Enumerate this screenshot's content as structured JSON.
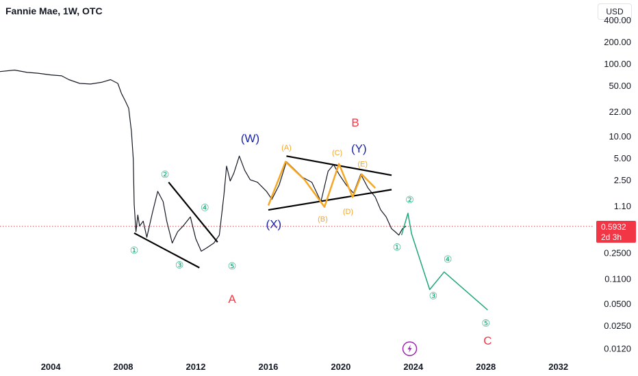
{
  "header": {
    "title": "Fannie Mae, 1W, OTC",
    "currency_button": "USD"
  },
  "price_tag": {
    "price": "0.5932",
    "countdown": "2d 3h"
  },
  "colors": {
    "price": "#131722",
    "triangle": "#000000",
    "orange": "#f5a623",
    "navy": "#1a23a8",
    "red": "#f23645",
    "teal": "#1fa67a",
    "cursor": "#9c27b0"
  },
  "lightning_icon": "lightning-icon",
  "chart_data": {
    "type": "line",
    "title": "Fannie Mae, 1W, OTC",
    "xlabel": "",
    "ylabel": "",
    "x_ticks": [
      "2004",
      "2008",
      "2012",
      "2016",
      "2020",
      "2024",
      "2028",
      "2032"
    ],
    "xlim": [
      2001.2,
      2033.9
    ],
    "y_scale": "log",
    "y_ticks": [
      "400.00",
      "200.00",
      "100.00",
      "50.00",
      "22.00",
      "10.00",
      "5.00",
      "2.50",
      "1.10",
      "0.2500",
      "0.1100",
      "0.0500",
      "0.0250",
      "0.0120"
    ],
    "ylim": [
      0.0095,
      650
    ],
    "current_price": 0.5932,
    "price_series": [
      [
        2001.2,
        80
      ],
      [
        2002.0,
        84
      ],
      [
        2002.7,
        78
      ],
      [
        2003.3,
        76
      ],
      [
        2004.0,
        72
      ],
      [
        2004.6,
        70
      ],
      [
        2005.0,
        62
      ],
      [
        2005.6,
        55
      ],
      [
        2006.2,
        54
      ],
      [
        2006.8,
        57
      ],
      [
        2007.3,
        62
      ],
      [
        2007.7,
        55
      ],
      [
        2007.9,
        40
      ],
      [
        2008.1,
        32
      ],
      [
        2008.3,
        25
      ],
      [
        2008.45,
        12
      ],
      [
        2008.55,
        5
      ],
      [
        2008.6,
        1.2
      ],
      [
        2008.7,
        0.5
      ],
      [
        2008.8,
        0.85
      ],
      [
        2008.9,
        0.6
      ],
      [
        2009.1,
        0.7
      ],
      [
        2009.3,
        0.42
      ],
      [
        2009.6,
        0.9
      ],
      [
        2009.9,
        1.8
      ],
      [
        2010.2,
        1.3
      ],
      [
        2010.4,
        0.7
      ],
      [
        2010.7,
        0.35
      ],
      [
        2011.0,
        0.5
      ],
      [
        2011.3,
        0.6
      ],
      [
        2011.7,
        0.8
      ],
      [
        2012.0,
        0.4
      ],
      [
        2012.3,
        0.27
      ],
      [
        2012.6,
        0.3
      ],
      [
        2013.0,
        0.35
      ],
      [
        2013.3,
        0.45
      ],
      [
        2013.55,
        1.6
      ],
      [
        2013.7,
        4.0
      ],
      [
        2013.9,
        2.5
      ],
      [
        2014.1,
        3.2
      ],
      [
        2014.4,
        5.5
      ],
      [
        2014.7,
        3.5
      ],
      [
        2015.0,
        2.6
      ],
      [
        2015.4,
        2.4
      ],
      [
        2015.9,
        1.8
      ],
      [
        2016.2,
        1.4
      ],
      [
        2016.6,
        2.2
      ],
      [
        2017.0,
        4.6
      ],
      [
        2017.5,
        3.5
      ],
      [
        2017.9,
        2.8
      ],
      [
        2018.4,
        2.4
      ],
      [
        2018.9,
        1.3
      ],
      [
        2019.3,
        3.4
      ],
      [
        2019.6,
        4.2
      ],
      [
        2019.9,
        3.1
      ],
      [
        2020.3,
        2.2
      ],
      [
        2020.7,
        1.7
      ],
      [
        2021.1,
        3.1
      ],
      [
        2021.5,
        2.0
      ],
      [
        2021.9,
        1.5
      ],
      [
        2022.2,
        1.0
      ],
      [
        2022.5,
        0.8
      ],
      [
        2022.8,
        0.55
      ],
      [
        2023.0,
        0.5
      ],
      [
        2023.2,
        0.45
      ],
      [
        2023.4,
        0.55
      ],
      [
        2023.6,
        0.6
      ]
    ],
    "triangle_lines": [
      [
        [
          2008.6,
          0.48
        ],
        [
          2012.2,
          0.16
        ]
      ],
      [
        [
          2010.5,
          2.4
        ],
        [
          2013.2,
          0.36
        ]
      ],
      [
        [
          2017.0,
          5.5
        ],
        [
          2022.8,
          3.0
        ]
      ],
      [
        [
          2016.0,
          1.0
        ],
        [
          2022.8,
          1.9
        ]
      ]
    ],
    "orange_zigzag": [
      [
        2016.0,
        1.15
      ],
      [
        2016.95,
        4.6
      ],
      [
        2018.0,
        2.6
      ],
      [
        2019.1,
        1.1
      ],
      [
        2019.9,
        4.3
      ],
      [
        2020.65,
        1.5
      ],
      [
        2021.15,
        3.1
      ],
      [
        2021.9,
        2.0
      ]
    ],
    "projection_path": [
      [
        2023.35,
        0.45
      ],
      [
        2023.7,
        0.9
      ],
      [
        2023.9,
        0.47
      ],
      [
        2024.9,
        0.08
      ],
      [
        2025.7,
        0.14
      ],
      [
        2028.1,
        0.042
      ]
    ],
    "wave_labels": [
      {
        "text": "①",
        "x": 2008.6,
        "y": 0.27,
        "color": "teal",
        "size": 14
      },
      {
        "text": "②",
        "x": 2010.3,
        "y": 3.0,
        "color": "teal",
        "size": 14
      },
      {
        "text": "③",
        "x": 2011.1,
        "y": 0.17,
        "color": "teal",
        "size": 14
      },
      {
        "text": "④",
        "x": 2012.5,
        "y": 1.05,
        "color": "teal",
        "size": 14
      },
      {
        "text": "⑤",
        "x": 2014.0,
        "y": 0.165,
        "color": "teal",
        "size": 14
      },
      {
        "text": "A",
        "x": 2014.0,
        "y": 0.058,
        "color": "red",
        "size": 17
      },
      {
        "text": "(W)",
        "x": 2015.0,
        "y": 9.4,
        "color": "navy",
        "size": 17
      },
      {
        "text": "(X)",
        "x": 2016.3,
        "y": 0.62,
        "color": "navy",
        "size": 17
      },
      {
        "text": "(A)",
        "x": 2017.0,
        "y": 7.1,
        "color": "orange",
        "size": 11
      },
      {
        "text": "(B)",
        "x": 2019.0,
        "y": 0.74,
        "color": "orange",
        "size": 11
      },
      {
        "text": "(C)",
        "x": 2019.8,
        "y": 6.0,
        "color": "orange",
        "size": 11
      },
      {
        "text": "(D)",
        "x": 2020.4,
        "y": 0.94,
        "color": "orange",
        "size": 11
      },
      {
        "text": "(E)",
        "x": 2021.2,
        "y": 4.2,
        "color": "orange",
        "size": 11
      },
      {
        "text": "B",
        "x": 2020.8,
        "y": 15.5,
        "color": "red",
        "size": 17
      },
      {
        "text": "(Y)",
        "x": 2021.0,
        "y": 6.8,
        "color": "navy",
        "size": 17
      },
      {
        "text": "①",
        "x": 2023.1,
        "y": 0.3,
        "color": "teal",
        "size": 14
      },
      {
        "text": "②",
        "x": 2023.8,
        "y": 1.35,
        "color": "teal",
        "size": 14
      },
      {
        "text": "③",
        "x": 2025.1,
        "y": 0.064,
        "color": "teal",
        "size": 14
      },
      {
        "text": "④",
        "x": 2025.9,
        "y": 0.205,
        "color": "teal",
        "size": 14
      },
      {
        "text": "⑤",
        "x": 2028.0,
        "y": 0.027,
        "color": "teal",
        "size": 14
      },
      {
        "text": "C",
        "x": 2028.1,
        "y": 0.0155,
        "color": "red",
        "size": 17
      }
    ],
    "cursor_marker": {
      "x": 2023.8,
      "y": 0.0123
    },
    "grid": false,
    "legend": "none"
  }
}
